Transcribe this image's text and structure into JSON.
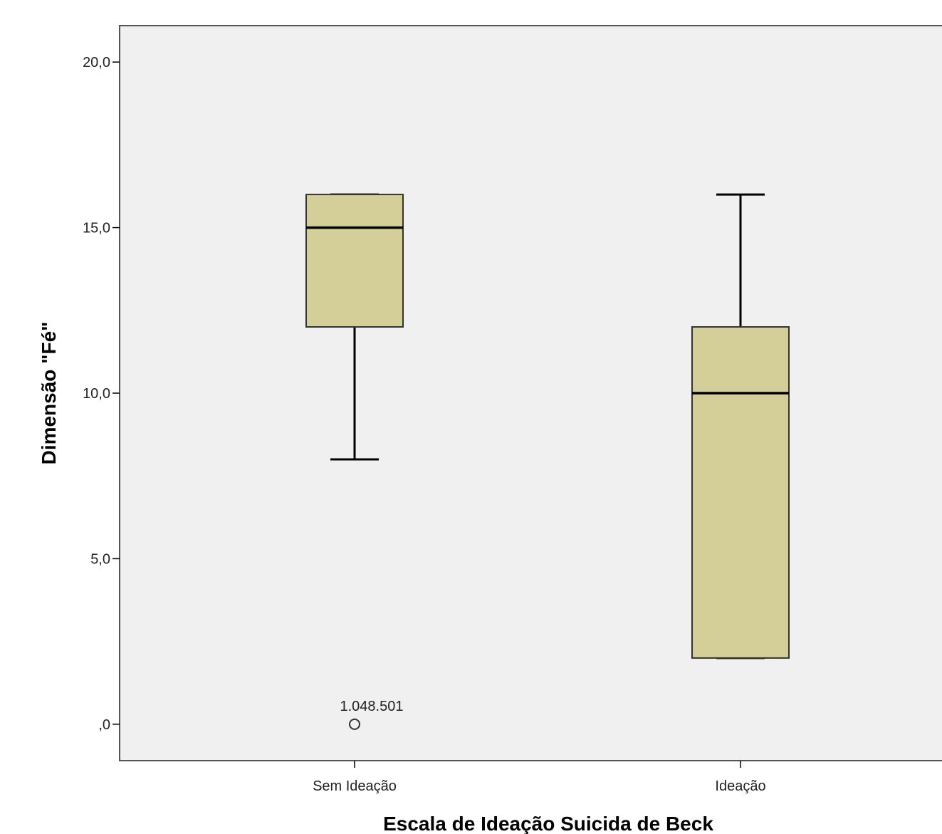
{
  "chart_data": {
    "type": "boxplot",
    "title": "",
    "xlabel": "Escala de Ideação Suicida de Beck",
    "ylabel": "Dimensão \"Fé\"",
    "ylim": [
      -1.1,
      21.1
    ],
    "y_ticks": [
      {
        "value": 0,
        "label": ",0"
      },
      {
        "value": 5,
        "label": "5,0"
      },
      {
        "value": 10,
        "label": "10,0"
      },
      {
        "value": 15,
        "label": "15,0"
      },
      {
        "value": 20,
        "label": "20,0"
      }
    ],
    "categories": [
      "Sem Ideação",
      "Ideação"
    ],
    "boxes": [
      {
        "category": "Sem Ideação",
        "whisker_low": 8,
        "q1": 12,
        "median": 15,
        "q3": 16,
        "whisker_high": 16,
        "outliers": [
          {
            "value": 0,
            "label": "1.048.501"
          }
        ]
      },
      {
        "category": "Ideação",
        "whisker_low": 2,
        "q1": 2,
        "median": 10,
        "q3": 12,
        "whisker_high": 16,
        "outliers": []
      }
    ],
    "colors": {
      "box_fill": "#d4cf98",
      "plot_bg": "#f0f0f0",
      "stroke": "#000000"
    },
    "grid": false,
    "legend": "none"
  }
}
